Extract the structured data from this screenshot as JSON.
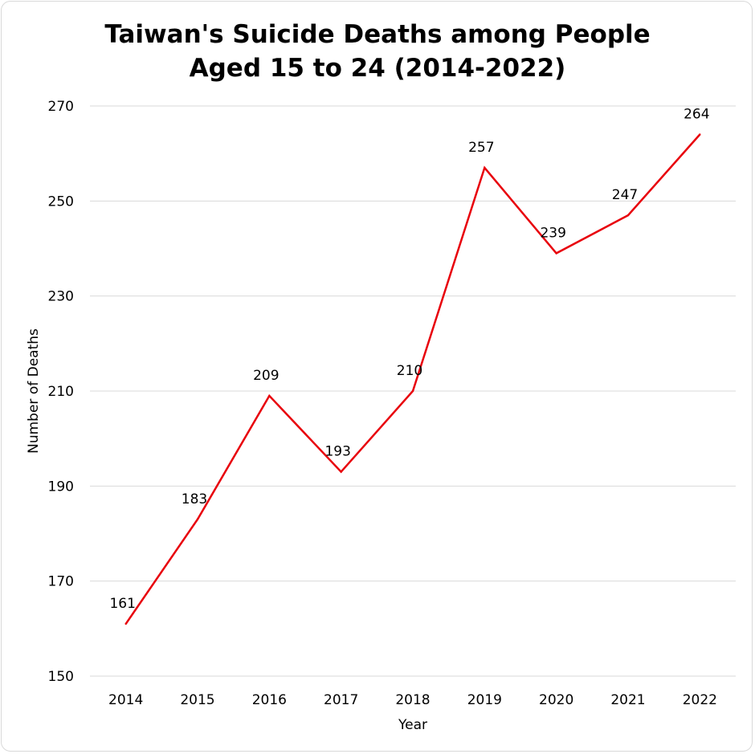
{
  "chart_data": {
    "type": "line",
    "title_lines": [
      "Taiwan's Suicide Deaths among People",
      "Aged 15 to 24 (2014-2022)"
    ],
    "xlabel": "Year",
    "ylabel": "Number of Deaths",
    "categories": [
      "2014",
      "2015",
      "2016",
      "2017",
      "2018",
      "2019",
      "2020",
      "2021",
      "2022"
    ],
    "series": [
      {
        "values": [
          161,
          183,
          209,
          193,
          210,
          257,
          239,
          247,
          264
        ],
        "color": "#e8000b"
      }
    ],
    "data_labels": [
      "161",
      "183",
      "209",
      "193",
      "210",
      "257",
      "239",
      "247",
      "264"
    ],
    "ylim": [
      150,
      270
    ],
    "yticks": [
      "150",
      "170",
      "190",
      "210",
      "230",
      "250",
      "270"
    ],
    "grid": true,
    "legend": "none"
  }
}
